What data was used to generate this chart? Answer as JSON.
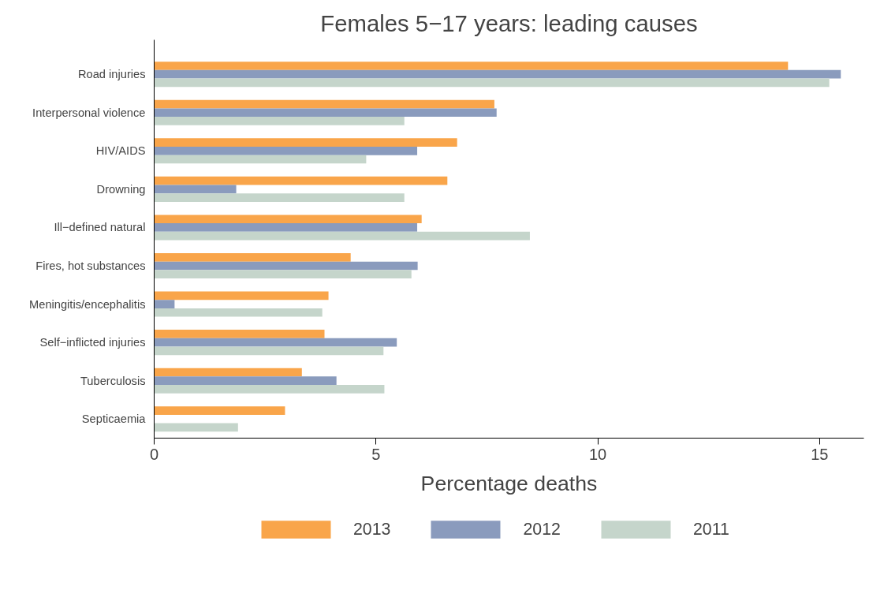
{
  "chart_data": {
    "type": "bar",
    "orientation": "horizontal",
    "title": "Females 5−17 years: leading causes",
    "xlabel": "Percentage deaths",
    "categories": [
      "Road injuries",
      "Interpersonal violence",
      "HIV/AIDS",
      "Drowning",
      "Ill−defined natural",
      "Fires, hot substances",
      "Meningitis/encephalitis",
      "Self−inflicted injuries",
      "Tuberculosis",
      "Septicaemia"
    ],
    "series": [
      {
        "name": "2013",
        "color": "#f9a54a",
        "values": [
          14.29,
          7.67,
          6.83,
          6.61,
          6.03,
          4.43,
          3.93,
          3.84,
          3.33,
          2.95
        ]
      },
      {
        "name": "2012",
        "color": "#8a9bbd",
        "values": [
          15.48,
          7.72,
          5.93,
          1.85,
          5.93,
          5.94,
          0.46,
          5.47,
          4.11,
          null
        ]
      },
      {
        "name": "2011",
        "color": "#c5d5cb",
        "values": [
          15.22,
          5.64,
          4.78,
          5.64,
          8.47,
          5.8,
          3.79,
          5.17,
          5.19,
          1.89
        ]
      }
    ],
    "xlim": [
      0,
      16
    ],
    "xticks": [
      0,
      5,
      10,
      15
    ],
    "grid": false,
    "legend": "bottom"
  }
}
